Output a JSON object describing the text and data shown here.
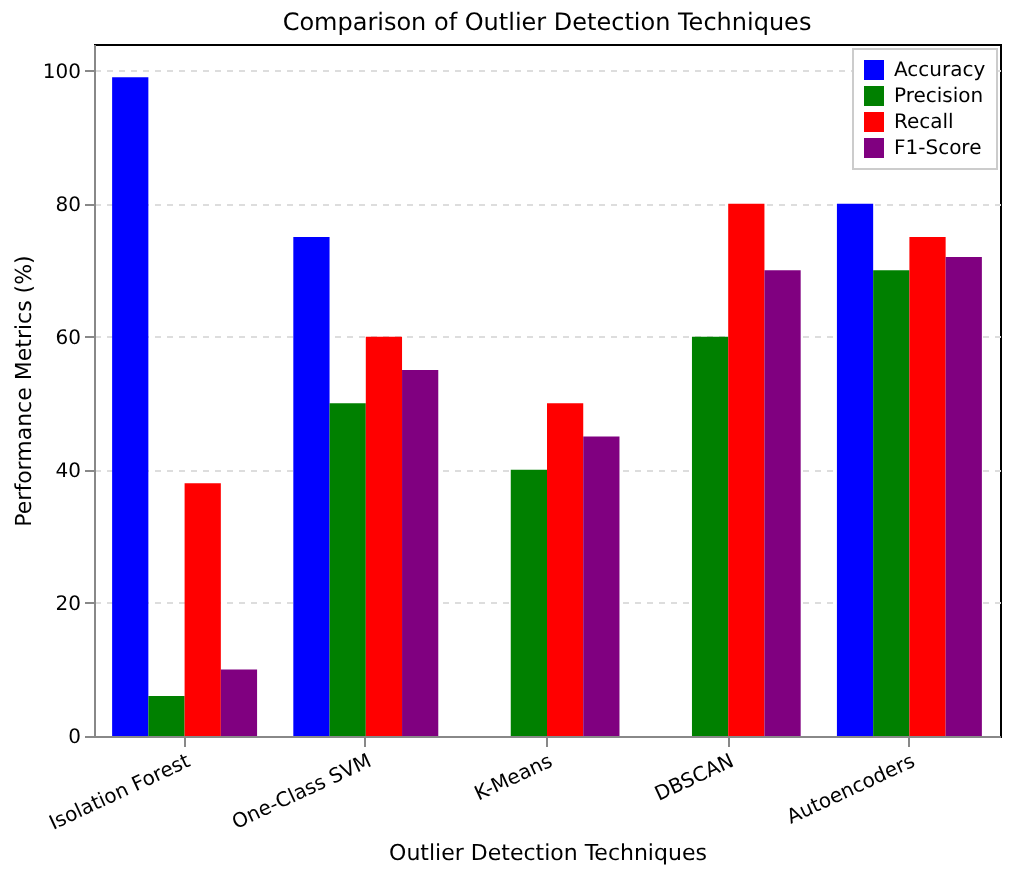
{
  "chart_data": {
    "type": "bar",
    "title": "Comparison of Outlier Detection Techniques",
    "xlabel": "Outlier Detection Techniques",
    "ylabel": "Performance Metrics (%)",
    "categories": [
      "Isolation Forest",
      "One-Class SVM",
      "K-Means",
      "DBSCAN",
      "Autoencoders"
    ],
    "series": [
      {
        "name": "Accuracy",
        "color": "#0000ff",
        "values": [
          99,
          75,
          null,
          null,
          80
        ]
      },
      {
        "name": "Precision",
        "color": "#008000",
        "values": [
          6,
          50,
          40,
          60,
          70
        ]
      },
      {
        "name": "Recall",
        "color": "#ff0000",
        "values": [
          38,
          60,
          50,
          80,
          75
        ]
      },
      {
        "name": "F1-Score",
        "color": "#800080",
        "values": [
          10,
          55,
          45,
          70,
          72
        ]
      }
    ],
    "ylim": [
      0,
      104
    ],
    "yticks": [
      0,
      20,
      40,
      60,
      80,
      100
    ],
    "grid": "y",
    "legend": "top right"
  }
}
